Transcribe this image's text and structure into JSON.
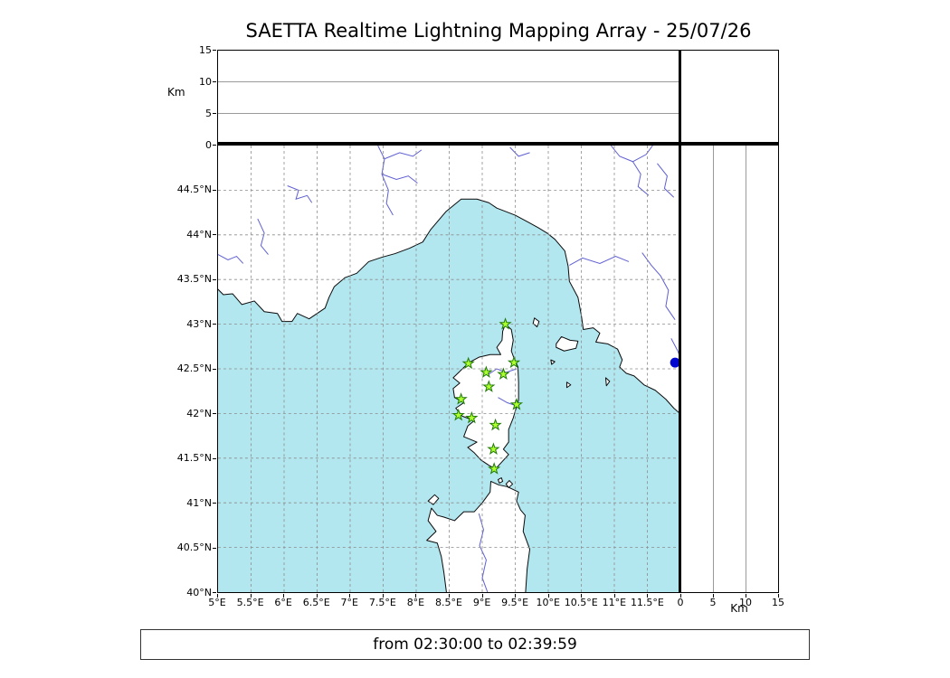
{
  "title": "SAETTA Realtime Lightning Mapping Array - 25/07/26",
  "footer": {
    "text": "from 02:30:00 to 02:39:59"
  },
  "axes": {
    "alt_label": "Km",
    "alt_range": [
      0,
      15
    ],
    "alt_ticks": [
      {
        "label": "0",
        "value": 0
      },
      {
        "label": "5",
        "value": 5
      },
      {
        "label": "10",
        "value": 10
      },
      {
        "label": "15",
        "value": 15
      }
    ],
    "lon_range": [
      5,
      12
    ],
    "lat_range": [
      40,
      45
    ],
    "lon_ticks": [
      {
        "label": "5°E",
        "value": 5
      },
      {
        "label": "5.5°E",
        "value": 5.5
      },
      {
        "label": "6°E",
        "value": 6
      },
      {
        "label": "6.5°E",
        "value": 6.5
      },
      {
        "label": "7°E",
        "value": 7
      },
      {
        "label": "7.5°E",
        "value": 7.5
      },
      {
        "label": "8°E",
        "value": 8
      },
      {
        "label": "8.5°E",
        "value": 8.5
      },
      {
        "label": "9°E",
        "value": 9
      },
      {
        "label": "9.5°E",
        "value": 9.5
      },
      {
        "label": "10°E",
        "value": 10
      },
      {
        "label": "10.5°E",
        "value": 10.5
      },
      {
        "label": "11°E",
        "value": 11
      },
      {
        "label": "11.5°E",
        "value": 11.5
      }
    ],
    "lat_ticks": [
      {
        "label": "44.5°N",
        "value": 44.5
      },
      {
        "label": "44°N",
        "value": 44
      },
      {
        "label": "43.5°N",
        "value": 43.5
      },
      {
        "label": "43°N",
        "value": 43
      },
      {
        "label": "42.5°N",
        "value": 42.5
      },
      {
        "label": "42°N",
        "value": 42
      },
      {
        "label": "41.5°N",
        "value": 41.5
      },
      {
        "label": "41°N",
        "value": 41
      },
      {
        "label": "40.5°N",
        "value": 40.5
      },
      {
        "label": "40°N",
        "value": 40
      }
    ]
  },
  "colors": {
    "sea": "#b3e7f0",
    "land": "#ffffff",
    "coast": "#0a0a0a",
    "river": "#5f5fd3",
    "grid": "#8c8c8c",
    "station_fill": "#adff2f",
    "station_edge": "#1f7a06",
    "event": "#0008cf"
  },
  "stations": [
    [
      9.35,
      43.0
    ],
    [
      8.79,
      42.56
    ],
    [
      9.06,
      42.46
    ],
    [
      9.32,
      42.44
    ],
    [
      9.48,
      42.57
    ],
    [
      9.1,
      42.3
    ],
    [
      8.68,
      42.16
    ],
    [
      9.52,
      42.1
    ],
    [
      8.64,
      41.98
    ],
    [
      8.84,
      41.95
    ],
    [
      9.2,
      41.87
    ],
    [
      9.17,
      41.6
    ],
    [
      9.18,
      41.38
    ]
  ],
  "event_marker": {
    "lon": 11.92,
    "lat": 42.57,
    "radius": 5.5
  },
  "geography": {
    "land": [
      {
        "name": "mainland",
        "points": [
          [
            4.93,
            43.44
          ],
          [
            5.08,
            43.33
          ],
          [
            5.22,
            43.34
          ],
          [
            5.36,
            43.22
          ],
          [
            5.55,
            43.26
          ],
          [
            5.7,
            43.14
          ],
          [
            5.9,
            43.12
          ],
          [
            5.97,
            43.03
          ],
          [
            6.12,
            43.03
          ],
          [
            6.2,
            43.12
          ],
          [
            6.38,
            43.06
          ],
          [
            6.62,
            43.18
          ],
          [
            6.68,
            43.3
          ],
          [
            6.76,
            43.42
          ],
          [
            6.92,
            43.52
          ],
          [
            7.1,
            43.57
          ],
          [
            7.28,
            43.7
          ],
          [
            7.48,
            43.75
          ],
          [
            7.68,
            43.79
          ],
          [
            7.9,
            43.85
          ],
          [
            8.1,
            43.92
          ],
          [
            8.22,
            44.06
          ],
          [
            8.45,
            44.26
          ],
          [
            8.68,
            44.4
          ],
          [
            8.92,
            44.4
          ],
          [
            9.1,
            44.36
          ],
          [
            9.22,
            44.3
          ],
          [
            9.5,
            44.22
          ],
          [
            9.7,
            44.14
          ],
          [
            9.85,
            44.08
          ],
          [
            9.98,
            44.02
          ],
          [
            10.1,
            43.95
          ],
          [
            10.25,
            43.82
          ],
          [
            10.3,
            43.65
          ],
          [
            10.32,
            43.48
          ],
          [
            10.45,
            43.3
          ],
          [
            10.5,
            43.1
          ],
          [
            10.53,
            42.94
          ],
          [
            10.68,
            42.96
          ],
          [
            10.78,
            42.9
          ],
          [
            10.72,
            42.8
          ],
          [
            10.9,
            42.78
          ],
          [
            11.05,
            42.72
          ],
          [
            11.12,
            42.6
          ],
          [
            11.08,
            42.52
          ],
          [
            11.18,
            42.45
          ],
          [
            11.3,
            42.42
          ],
          [
            11.45,
            42.32
          ],
          [
            11.62,
            42.26
          ],
          [
            11.78,
            42.16
          ],
          [
            11.9,
            42.06
          ],
          [
            12.07,
            41.95
          ],
          [
            12.07,
            45.07
          ],
          [
            4.93,
            45.07
          ]
        ]
      },
      {
        "name": "corsica",
        "points": [
          [
            9.35,
            43.0
          ],
          [
            9.44,
            42.94
          ],
          [
            9.47,
            42.82
          ],
          [
            9.44,
            42.7
          ],
          [
            9.48,
            42.62
          ],
          [
            9.54,
            42.52
          ],
          [
            9.55,
            42.35
          ],
          [
            9.55,
            42.15
          ],
          [
            9.47,
            41.95
          ],
          [
            9.4,
            41.82
          ],
          [
            9.4,
            41.68
          ],
          [
            9.32,
            41.6
          ],
          [
            9.4,
            41.54
          ],
          [
            9.3,
            41.46
          ],
          [
            9.2,
            41.38
          ],
          [
            9.1,
            41.42
          ],
          [
            8.98,
            41.48
          ],
          [
            8.88,
            41.56
          ],
          [
            8.78,
            41.62
          ],
          [
            8.92,
            41.68
          ],
          [
            8.72,
            41.74
          ],
          [
            8.78,
            41.86
          ],
          [
            8.88,
            41.92
          ],
          [
            8.7,
            41.97
          ],
          [
            8.6,
            42.06
          ],
          [
            8.72,
            42.12
          ],
          [
            8.58,
            42.18
          ],
          [
            8.56,
            42.28
          ],
          [
            8.66,
            42.34
          ],
          [
            8.56,
            42.4
          ],
          [
            8.7,
            42.5
          ],
          [
            8.8,
            42.57
          ],
          [
            8.95,
            42.63
          ],
          [
            9.12,
            42.66
          ],
          [
            9.28,
            42.66
          ],
          [
            9.22,
            42.74
          ],
          [
            9.3,
            42.82
          ],
          [
            9.31,
            42.92
          ]
        ]
      },
      {
        "name": "sardinia",
        "points": [
          [
            8.47,
            39.93
          ],
          [
            8.42,
            40.22
          ],
          [
            8.38,
            40.4
          ],
          [
            8.32,
            40.55
          ],
          [
            8.16,
            40.58
          ],
          [
            8.3,
            40.68
          ],
          [
            8.18,
            40.8
          ],
          [
            8.23,
            40.94
          ],
          [
            8.32,
            40.86
          ],
          [
            8.42,
            40.84
          ],
          [
            8.58,
            40.8
          ],
          [
            8.72,
            40.9
          ],
          [
            8.88,
            40.9
          ],
          [
            9.0,
            41.0
          ],
          [
            9.12,
            41.12
          ],
          [
            9.13,
            41.24
          ],
          [
            9.25,
            41.2
          ],
          [
            9.38,
            41.18
          ],
          [
            9.55,
            41.12
          ],
          [
            9.52,
            41.02
          ],
          [
            9.58,
            40.92
          ],
          [
            9.65,
            40.86
          ],
          [
            9.62,
            40.68
          ],
          [
            9.72,
            40.48
          ],
          [
            9.68,
            40.26
          ],
          [
            9.65,
            39.93
          ]
        ]
      },
      {
        "name": "asinara",
        "points": [
          [
            8.18,
            41.02
          ],
          [
            8.28,
            41.09
          ],
          [
            8.34,
            41.05
          ],
          [
            8.26,
            40.98
          ]
        ]
      },
      {
        "name": "maddalena",
        "points": [
          [
            9.36,
            41.21
          ],
          [
            9.41,
            41.25
          ],
          [
            9.46,
            41.21
          ],
          [
            9.4,
            41.17
          ]
        ]
      },
      {
        "name": "maddalena-w",
        "points": [
          [
            9.24,
            41.26
          ],
          [
            9.29,
            41.28
          ],
          [
            9.31,
            41.24
          ],
          [
            9.26,
            41.22
          ]
        ]
      },
      {
        "name": "elba",
        "points": [
          [
            10.12,
            42.78
          ],
          [
            10.2,
            42.86
          ],
          [
            10.33,
            42.82
          ],
          [
            10.45,
            42.81
          ],
          [
            10.42,
            42.73
          ],
          [
            10.24,
            42.7
          ],
          [
            10.12,
            42.74
          ]
        ]
      },
      {
        "name": "capraia",
        "points": [
          [
            9.79,
            43.07
          ],
          [
            9.86,
            43.03
          ],
          [
            9.83,
            42.97
          ],
          [
            9.77,
            43.01
          ]
        ]
      },
      {
        "name": "pianosa",
        "points": [
          [
            10.04,
            42.6
          ],
          [
            10.1,
            42.58
          ],
          [
            10.05,
            42.55
          ]
        ]
      },
      {
        "name": "montecristo",
        "points": [
          [
            10.28,
            42.35
          ],
          [
            10.34,
            42.32
          ],
          [
            10.28,
            42.29
          ]
        ]
      },
      {
        "name": "giglio",
        "points": [
          [
            10.87,
            42.4
          ],
          [
            10.93,
            42.36
          ],
          [
            10.88,
            42.31
          ]
        ]
      }
    ],
    "rivers": [
      [
        [
          5.0,
          43.78
        ],
        [
          5.15,
          43.72
        ],
        [
          5.28,
          43.76
        ],
        [
          5.38,
          43.68
        ]
      ],
      [
        [
          5.6,
          44.18
        ],
        [
          5.7,
          44.02
        ],
        [
          5.65,
          43.88
        ],
        [
          5.76,
          43.78
        ]
      ],
      [
        [
          6.05,
          44.55
        ],
        [
          6.22,
          44.5
        ],
        [
          6.18,
          44.4
        ],
        [
          6.35,
          44.44
        ],
        [
          6.42,
          44.36
        ]
      ],
      [
        [
          7.42,
          45.0
        ],
        [
          7.52,
          44.85
        ],
        [
          7.48,
          44.68
        ],
        [
          7.58,
          44.5
        ],
        [
          7.55,
          44.35
        ],
        [
          7.65,
          44.22
        ]
      ],
      [
        [
          7.48,
          44.68
        ],
        [
          7.7,
          44.62
        ],
        [
          7.88,
          44.66
        ],
        [
          8.02,
          44.58
        ]
      ],
      [
        [
          7.52,
          44.85
        ],
        [
          7.75,
          44.92
        ],
        [
          7.95,
          44.88
        ],
        [
          8.08,
          44.95
        ]
      ],
      [
        [
          9.42,
          44.98
        ],
        [
          9.55,
          44.88
        ],
        [
          9.72,
          44.92
        ]
      ],
      [
        [
          10.95,
          45.0
        ],
        [
          11.08,
          44.88
        ],
        [
          11.28,
          44.82
        ],
        [
          11.48,
          44.9
        ],
        [
          11.58,
          45.0
        ]
      ],
      [
        [
          11.28,
          44.82
        ],
        [
          11.4,
          44.68
        ],
        [
          11.36,
          44.54
        ],
        [
          11.52,
          44.44
        ]
      ],
      [
        [
          11.65,
          44.8
        ],
        [
          11.8,
          44.66
        ],
        [
          11.76,
          44.52
        ],
        [
          11.9,
          44.42
        ]
      ],
      [
        [
          10.32,
          43.66
        ],
        [
          10.52,
          43.74
        ],
        [
          10.78,
          43.68
        ],
        [
          11.02,
          43.76
        ],
        [
          11.22,
          43.7
        ]
      ],
      [
        [
          11.42,
          43.8
        ],
        [
          11.56,
          43.66
        ],
        [
          11.7,
          43.54
        ],
        [
          11.82,
          43.38
        ],
        [
          11.78,
          43.2
        ],
        [
          11.92,
          43.05
        ]
      ],
      [
        [
          11.86,
          42.84
        ],
        [
          11.96,
          42.7
        ],
        [
          12.0,
          42.62
        ]
      ],
      [
        [
          8.95,
          40.88
        ],
        [
          9.02,
          40.7
        ],
        [
          8.96,
          40.52
        ],
        [
          9.06,
          40.36
        ],
        [
          9.0,
          40.16
        ],
        [
          9.08,
          40.0
        ]
      ],
      [
        [
          9.52,
          42.5
        ],
        [
          9.36,
          42.46
        ],
        [
          9.22,
          42.5
        ],
        [
          9.1,
          42.44
        ]
      ],
      [
        [
          9.54,
          42.08
        ],
        [
          9.38,
          42.12
        ],
        [
          9.24,
          42.18
        ]
      ]
    ]
  }
}
